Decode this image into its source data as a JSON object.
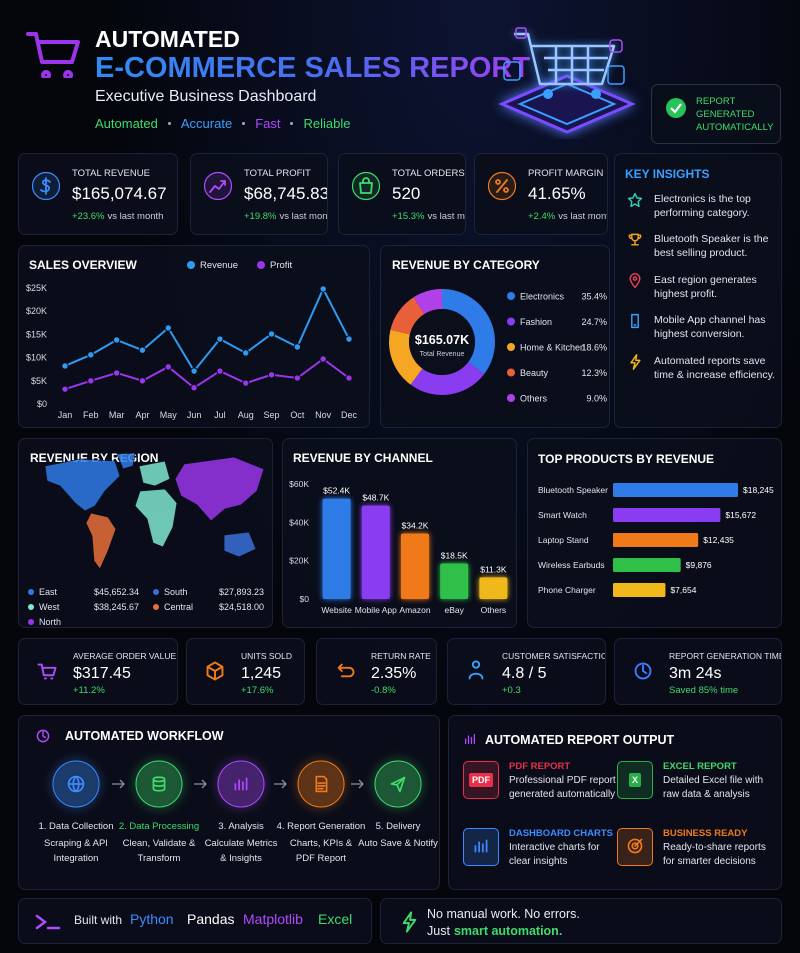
{
  "header": {
    "title_line1": "AUTOMATED",
    "title_line2": "E-COMMERCE SALES REPORT",
    "subtitle": "Executive Business Dashboard",
    "tags": [
      "Automated",
      "Accurate",
      "Fast",
      "Reliable"
    ],
    "badge": "REPORT GENERATED AUTOMATICALLY"
  },
  "kpis": [
    {
      "label": "TOTAL REVENUE",
      "value": "$165,074.67",
      "change": "+23.6%",
      "note": "vs last month"
    },
    {
      "label": "TOTAL PROFIT",
      "value": "$68,745.83",
      "change": "+19.8%",
      "note": "vs last month"
    },
    {
      "label": "TOTAL ORDERS",
      "value": "520",
      "change": "+15.3%",
      "note": "vs last month"
    },
    {
      "label": "PROFIT MARGIN",
      "value": "41.65%",
      "change": "+2.4%",
      "note": "vs last month"
    }
  ],
  "insights": {
    "title": "KEY INSIGHTS",
    "items": [
      "Electronics is the top performing category.",
      "Bluetooth Speaker is the best selling product.",
      "East region generates highest profit.",
      "Mobile App channel has highest conversion.",
      "Automated reports save time & increase efficiency."
    ]
  },
  "chart_data": [
    {
      "type": "line",
      "title": "SALES OVERVIEW",
      "categories": [
        "Jan",
        "Feb",
        "Mar",
        "Apr",
        "May",
        "Jun",
        "Jul",
        "Aug",
        "Sep",
        "Oct",
        "Nov",
        "Dec"
      ],
      "series": [
        {
          "name": "Revenue",
          "color": "#2f9bf0",
          "values": [
            8200,
            10600,
            13800,
            11600,
            16400,
            7100,
            14000,
            11000,
            15100,
            12300,
            24800,
            14000
          ]
        },
        {
          "name": "Profit",
          "color": "#9b35ec",
          "values": [
            3200,
            5000,
            6700,
            5000,
            8000,
            3500,
            7100,
            4500,
            6300,
            5600,
            9700,
            5600
          ]
        }
      ],
      "ylim": [
        0,
        25000
      ],
      "yticks": [
        {
          "value": 0,
          "label": "$0"
        },
        {
          "value": 5000,
          "label": "$5K"
        },
        {
          "value": 10000,
          "label": "$10K"
        },
        {
          "value": 15000,
          "label": "$15K"
        },
        {
          "value": 20000,
          "label": "$20K"
        },
        {
          "value": 25000,
          "label": "$25K"
        }
      ],
      "grid": false
    },
    {
      "type": "pie",
      "title": "REVENUE BY CATEGORY",
      "center_value": "$165.07K",
      "center_label": "Total Revenue",
      "categories": [
        "Electronics",
        "Fashion",
        "Home & Kitchen",
        "Beauty",
        "Others"
      ],
      "values": [
        35.4,
        24.7,
        18.6,
        12.3,
        9.0
      ],
      "value_labels": [
        "35.4%",
        "24.7%",
        "18.6%",
        "12.3%",
        "9.0%"
      ],
      "colors": [
        "#2f7be8",
        "#8a3cf0",
        "#f5a623",
        "#e8603a",
        "#b040e8"
      ]
    },
    {
      "type": "map",
      "title": "REVENUE BY REGION",
      "categories": [
        "East",
        "South",
        "West",
        "Central",
        "North"
      ],
      "values": [
        45652.34,
        27893.23,
        38245.67,
        24518.0,
        null
      ],
      "value_labels": [
        "$45,652.34",
        "$27,893.23",
        "$38,245.67",
        "$24,518.00",
        null
      ],
      "colors": [
        "#2f7be8",
        "#3b6fd8",
        "#7fe8d0",
        "#e8703a",
        "#9b35ec"
      ]
    },
    {
      "type": "bar",
      "title": "REVENUE BY CHANNEL",
      "categories": [
        "Website",
        "Mobile App",
        "Amazon",
        "eBay",
        "Others"
      ],
      "values": [
        52400,
        48700,
        34200,
        18500,
        11300
      ],
      "value_labels": [
        "$52.4K",
        "$48.7K",
        "$34.2K",
        "$18.5K",
        "$11.3K"
      ],
      "colors": [
        "#2f7be8",
        "#8a3cf0",
        "#f07a1a",
        "#2fc04a",
        "#f0b81a"
      ],
      "ylim": [
        0,
        60000
      ],
      "yticks": [
        {
          "value": 0,
          "label": "$0"
        },
        {
          "value": 20000,
          "label": "$20K"
        },
        {
          "value": 40000,
          "label": "$40K"
        },
        {
          "value": 60000,
          "label": "$60K"
        }
      ]
    },
    {
      "type": "hbar",
      "title": "TOP PRODUCTS BY REVENUE",
      "categories": [
        "Bluetooth Speaker",
        "Smart Watch",
        "Laptop Stand",
        "Wireless Earbuds",
        "Phone Charger"
      ],
      "values": [
        18245,
        15672,
        12435,
        9876,
        7654
      ],
      "value_labels": [
        "$18,245",
        "$15,672",
        "$12,435",
        "$9,876",
        "$7,654"
      ],
      "colors": [
        "#2f7be8",
        "#8a3cf0",
        "#f07a1a",
        "#2fc04a",
        "#f0b81a"
      ]
    }
  ],
  "metrics": [
    {
      "label": "AVERAGE ORDER VALUE",
      "value": "$317.45",
      "change": "+11.2%"
    },
    {
      "label": "UNITS SOLD",
      "value": "1,245",
      "change": "+17.6%"
    },
    {
      "label": "RETURN RATE",
      "value": "2.35%",
      "change": "-0.8%"
    },
    {
      "label": "CUSTOMER SATISFACTION",
      "value": "4.8 / 5",
      "change": "+0.3"
    },
    {
      "label": "REPORT GENERATION TIME",
      "value": "3m 24s",
      "change": "Saved 85% time"
    }
  ],
  "workflow": {
    "title": "AUTOMATED WORKFLOW",
    "steps": [
      {
        "title": "1. Data Collection",
        "text": "Scraping & API Integration"
      },
      {
        "title": "2. Data Processing",
        "text": "Clean, Validate & Transform"
      },
      {
        "title": "3. Analysis",
        "text": "Calculate Metrics & Insights"
      },
      {
        "title": "4. Report Generation",
        "text": "Charts, KPIs & PDF Report"
      },
      {
        "title": "5. Delivery",
        "text": "Auto Save & Notify"
      }
    ]
  },
  "report_output": {
    "title": "AUTOMATED REPORT OUTPUT",
    "items": [
      {
        "title": "PDF REPORT",
        "text": "Professional PDF report generated automatically",
        "icon_label": "PDF"
      },
      {
        "title": "EXCEL REPORT",
        "text": "Detailed Excel file with raw data & analysis",
        "icon_label": "X"
      },
      {
        "title": "DASHBOARD CHARTS",
        "text": "Interactive charts for clear insights"
      },
      {
        "title": "BUSINESS READY",
        "text": "Ready-to-share reports for smarter decisions"
      }
    ]
  },
  "footer": {
    "built_with": "Built with",
    "tools": [
      "Python",
      "Pandas",
      "Matplotlib",
      "Excel"
    ],
    "tagline": "No manual work. No errors.",
    "tagline2": "Just",
    "highlight": "smart automation."
  }
}
